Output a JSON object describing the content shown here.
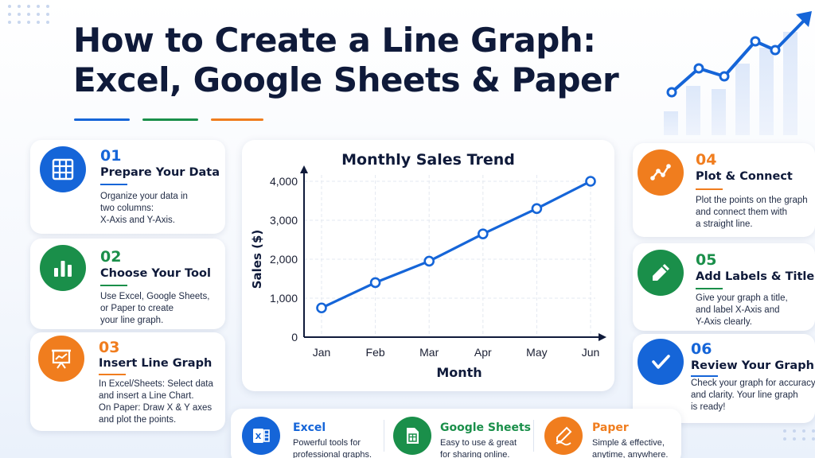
{
  "title": {
    "line1": "How to Create a Line Graph:",
    "line2": "Excel, Google Sheets & Paper"
  },
  "colors": {
    "blue": "#1565d8",
    "green": "#1a8f4a",
    "orange": "#f07d1e",
    "navy": "#0f1a3a"
  },
  "steps": [
    {
      "number": "01",
      "title": "Prepare Your Data",
      "icon": "table-grid-icon",
      "color": "#1565d8",
      "description": [
        "Organize your data in",
        "two columns:",
        "X-Axis and Y-Axis."
      ]
    },
    {
      "number": "02",
      "title": "Choose Your Tool",
      "icon": "bar-chart-icon",
      "color": "#1a8f4a",
      "description": [
        "Use Excel, Google Sheets,",
        "or Paper to create",
        "your line graph."
      ]
    },
    {
      "number": "03",
      "title": "Insert Line Graph",
      "icon": "presentation-chart-icon",
      "color": "#f07d1e",
      "description": [
        "In Excel/Sheets: Select data",
        "and insert a Line Chart.",
        "On Paper: Draw X & Y axes",
        "and plot the points."
      ]
    },
    {
      "number": "04",
      "title": "Plot & Connect",
      "icon": "line-points-icon",
      "color": "#f07d1e",
      "description": [
        "Plot the points on the graph",
        "and connect them with",
        "a straight line."
      ]
    },
    {
      "number": "05",
      "title": "Add Labels & Title",
      "icon": "pencil-icon",
      "color": "#1a8f4a",
      "description": [
        "Give your graph a title,",
        "and label X-Axis and",
        "Y-Axis clearly."
      ]
    },
    {
      "number": "06",
      "title": "Review Your Graph",
      "icon": "checkmark-icon",
      "color": "#1565d8",
      "description": [
        "Check your graph for accuracy",
        "and clarity. Your line graph",
        "is ready!"
      ]
    }
  ],
  "chart_data": {
    "type": "line",
    "title": "Monthly Sales Trend",
    "xlabel": "Month",
    "ylabel": "Sales ($)",
    "categories": [
      "Jan",
      "Feb",
      "Mar",
      "Apr",
      "May",
      "Jun"
    ],
    "values": [
      750,
      1400,
      1950,
      2650,
      3300,
      4000
    ],
    "ylim": [
      0,
      4000
    ],
    "yticks": [
      "0",
      "1,000",
      "2,000",
      "3,000",
      "4,000"
    ],
    "grid": true,
    "line_color": "#1565d8"
  },
  "tools": [
    {
      "name": "Excel",
      "icon": "excel-icon",
      "color": "#1565d8",
      "description": [
        "Powerful tools for",
        "professional graphs."
      ]
    },
    {
      "name": "Google Sheets",
      "icon": "google-sheets-icon",
      "color": "#1a8f4a",
      "description": [
        "Easy to use & great",
        "for sharing online."
      ]
    },
    {
      "name": "Paper",
      "icon": "pencil-paper-icon",
      "color": "#f07d1e",
      "description": [
        "Simple & effective,",
        "anytime, anywhere."
      ]
    }
  ]
}
